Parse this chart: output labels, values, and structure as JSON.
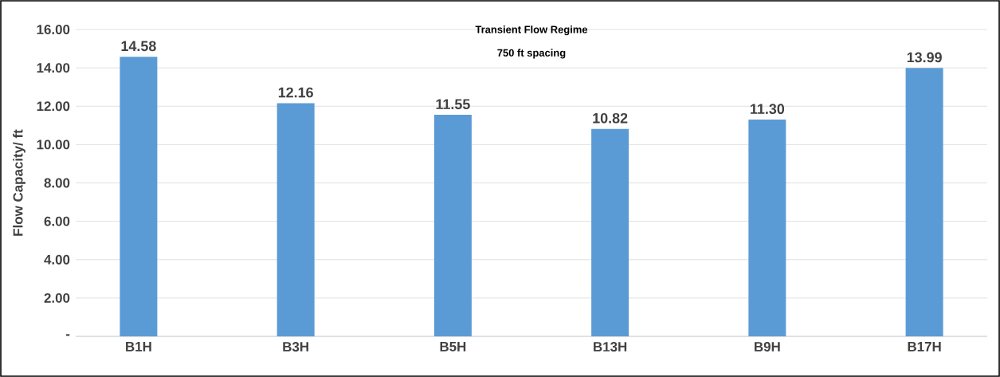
{
  "chart_data": {
    "type": "bar",
    "title": "Transient Flow Regime",
    "subtitle": "750 ft spacing",
    "ylabel": "Flow Capacity/ ft",
    "categories": [
      "B1H",
      "B3H",
      "B5H",
      "B13H",
      "B9H",
      "B17H"
    ],
    "values": [
      14.58,
      12.16,
      11.55,
      10.82,
      11.3,
      13.99
    ],
    "value_labels": [
      "14.58",
      "12.16",
      "11.55",
      "10.82",
      "11.30",
      "13.99"
    ],
    "color": "#5b9bd5",
    "ylim": [
      0,
      16
    ],
    "yticks": [
      {
        "value": 0,
        "label": "-"
      },
      {
        "value": 2,
        "label": "2.00"
      },
      {
        "value": 4,
        "label": "4.00"
      },
      {
        "value": 6,
        "label": "6.00"
      },
      {
        "value": 8,
        "label": "8.00"
      },
      {
        "value": 10,
        "label": "10.00"
      },
      {
        "value": 12,
        "label": "12.00"
      },
      {
        "value": 14,
        "label": "14.00"
      },
      {
        "value": 16,
        "label": "16.00"
      }
    ],
    "grid": "y"
  }
}
